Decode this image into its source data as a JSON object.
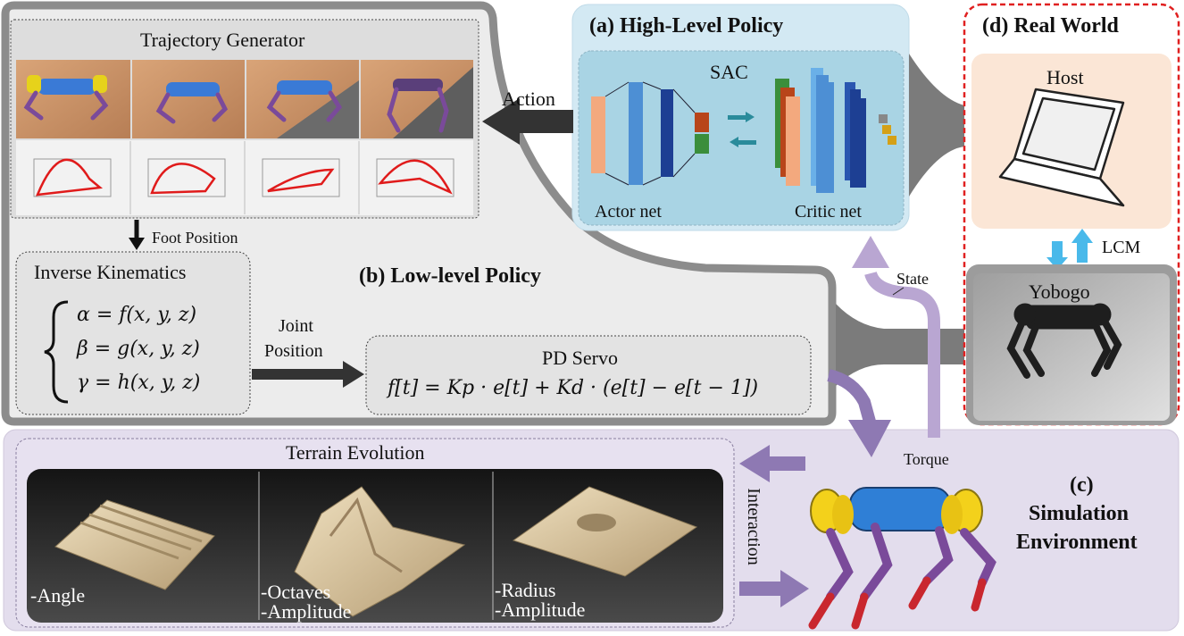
{
  "high_level": {
    "title": "(a) High-Level Policy",
    "algo": "SAC",
    "actor_label": "Actor net",
    "critic_label": "Critic net"
  },
  "low_level": {
    "title": "(b) Low-level Policy",
    "trajectory_title": "Trajectory Generator",
    "foot_position": "Foot Position",
    "ik_title": "Inverse Kinematics",
    "ik_equations": [
      "α = f(x, y, z)",
      "β = g(x, y, z)",
      "γ = h(x, y, z)"
    ],
    "joint_position": [
      "Joint",
      "Position"
    ],
    "pd_title": "PD Servo",
    "pd_equation": "f[t] = Kp · e[t] + Kd · (e[t] − e[t − 1])"
  },
  "simulation": {
    "title_lines": [
      "(c)",
      "Simulation",
      "Environment"
    ],
    "terrain_title": "Terrain Evolution",
    "terrain_params": [
      [
        "-Angle"
      ],
      [
        "-Octaves",
        "-Amplitude"
      ],
      [
        "-Radius",
        "-Amplitude"
      ]
    ],
    "interaction": "Interaction",
    "torque": "Torque"
  },
  "real_world": {
    "title": "(d) Real World",
    "host": "Host",
    "lcm": "LCM",
    "robot": "Yobogo"
  },
  "arrows": {
    "action": "Action",
    "state": "State"
  },
  "colors": {
    "high_level_bg": "#d3e9f3",
    "sac_bg": "#a9d4e4",
    "low_level_bg": "#ededed",
    "low_level_border": "#8c8c8c",
    "sim_bg": "#e3dded",
    "real_world_border": "#e02020",
    "host_bg": "#fbe6d6",
    "purple_arrow": "#8e79b3",
    "light_purple_arrow": "#b9a6d2",
    "lcm_arrow": "#49b9ea",
    "gray_arrow": "#7b7b7b"
  }
}
